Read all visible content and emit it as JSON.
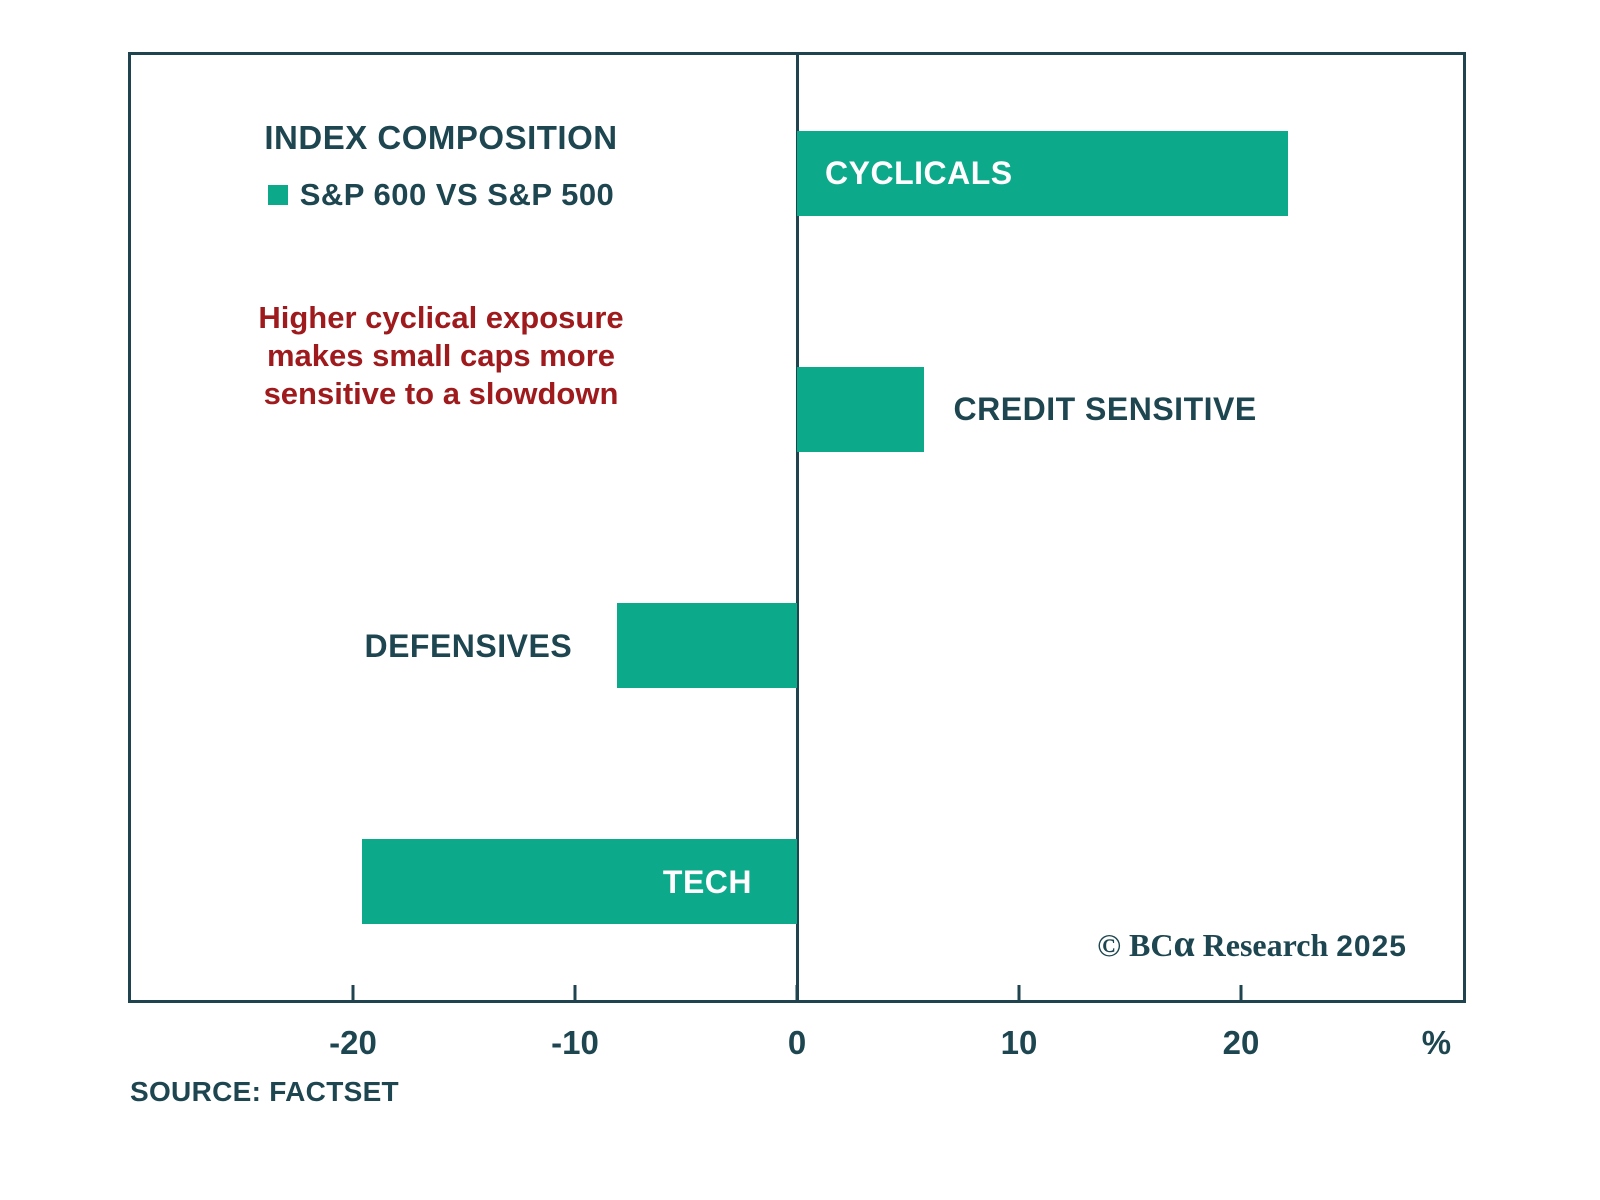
{
  "header": {
    "title": "INDEX COMPOSITION",
    "legend_label": "S&P 600 VS S&P 500"
  },
  "annotation": {
    "lines": [
      "Higher cyclical exposure",
      "makes small caps more",
      "sensitive to a slowdown"
    ],
    "color": "#9e1a1c"
  },
  "chart_data": {
    "type": "bar",
    "orientation": "horizontal",
    "title": "INDEX COMPOSITION",
    "series_name": "S&P 600 VS S&P 500",
    "categories": [
      "CYCLICALS",
      "CREDIT SENSITIVE",
      "DEFENSIVES",
      "TECH"
    ],
    "values": [
      22.1,
      5.7,
      -8.1,
      -19.6
    ],
    "xlim": [
      -30,
      30
    ],
    "xticks": [
      -20,
      -10,
      0,
      10,
      20
    ],
    "xtick_labels": [
      "-20",
      "-10",
      "0",
      "10",
      "20"
    ],
    "x_unit": "%",
    "gridlines": false,
    "zero_line": true,
    "bar_color": "#0ca98a",
    "label_color_inside": "#ffffff",
    "label_color_outside": "#1d4650",
    "label_styles": [
      "inside-start",
      "outside-end",
      "outside-start",
      "inside-end"
    ],
    "legend_position": "top-left-inside"
  },
  "copyright": {
    "prefix": "© BC",
    "alpha": "α",
    "suffix": " Research",
    "year": "2025"
  },
  "footer": {
    "source": "SOURCE: FACTSET"
  }
}
